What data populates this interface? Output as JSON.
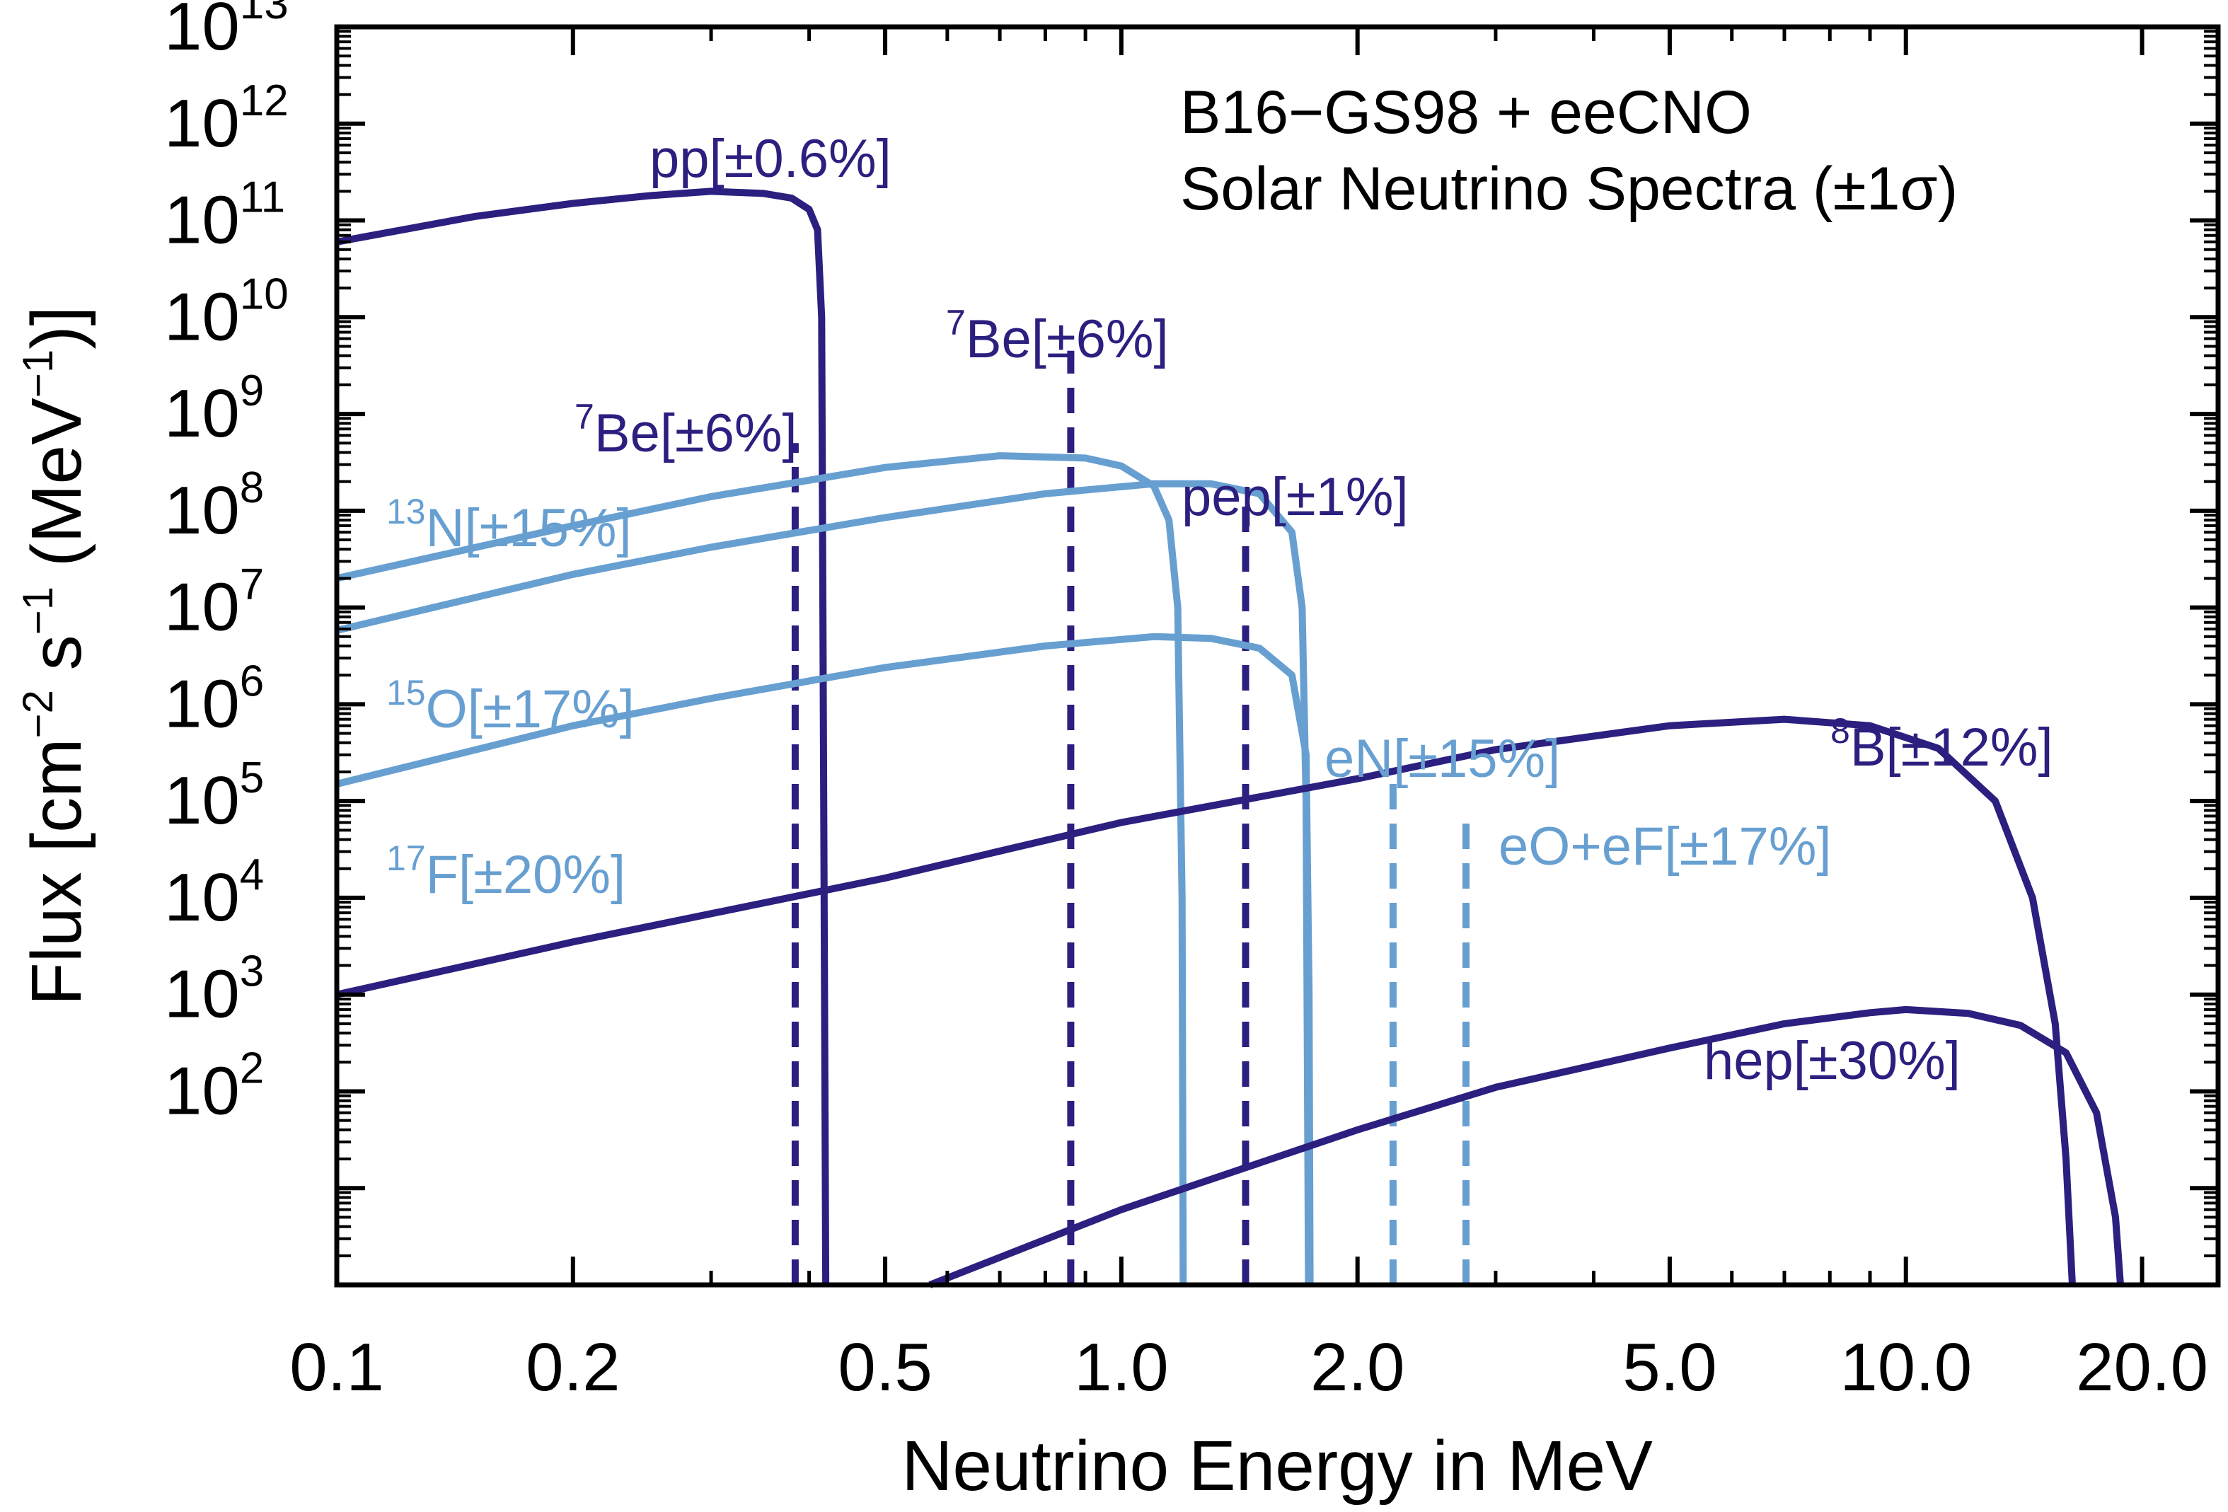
{
  "chart_data": {
    "type": "line",
    "title_lines": [
      "B16−GS98 + eeCNO",
      "Solar Neutrino Spectra (±1σ)"
    ],
    "xlabel": "Neutrino Energy in MeV",
    "ylabel": "Flux [cm−2 s−1 (MeV−1)]",
    "x_scale": "log",
    "y_scale": "log",
    "xlim": [
      0.1,
      25
    ],
    "ylim": [
      1,
      10000000000000
    ],
    "x_ticks": [
      0.1,
      0.2,
      0.5,
      1.0,
      2.0,
      5.0,
      10.0,
      20.0
    ],
    "x_tick_labels": [
      "0.1",
      "0.2",
      "0.5",
      "1.0",
      "2.0",
      "5.0",
      "10.0",
      "20.0"
    ],
    "y_ticks": [
      100,
      1000,
      10000,
      100000,
      1000000,
      10000000,
      100000000,
      1000000000,
      10000000000,
      100000000000,
      1000000000000,
      10000000000000
    ],
    "y_tick_base": "10",
    "y_tick_exponents": [
      "2",
      "3",
      "4",
      "5",
      "6",
      "7",
      "8",
      "9",
      "10",
      "11",
      "12",
      "13"
    ],
    "colors": {
      "pp_chain": "#2b1f7f",
      "cno": "#679fd1"
    },
    "series": [
      {
        "name": "pp",
        "label_main": "pp[±0.6%]",
        "color": "#2b1f7f",
        "style": "solid",
        "x": [
          0.1,
          0.15,
          0.2,
          0.25,
          0.3,
          0.35,
          0.38,
          0.4,
          0.41,
          0.415,
          0.418,
          0.42
        ],
        "y": [
          60000000000,
          110000000000,
          150000000000,
          180000000000,
          200000000000,
          190000000000,
          170000000000,
          130000000000,
          80000000000,
          10000000000,
          10000,
          1
        ]
      },
      {
        "name": "7Be-384keV",
        "label_sup": "7",
        "label_main": "Be[±6%]",
        "color": "#2b1f7f",
        "style": "dashed",
        "x": [
          0.384,
          0.384
        ],
        "y": [
          1,
          500000000
        ]
      },
      {
        "name": "7Be-862keV",
        "label_sup": "7",
        "label_main": "Be[±6%]",
        "color": "#2b1f7f",
        "style": "dashed",
        "x": [
          0.862,
          0.862
        ],
        "y": [
          1,
          4500000000
        ]
      },
      {
        "name": "pep",
        "label_main": "pep[±1%]",
        "color": "#2b1f7f",
        "style": "dashed",
        "x": [
          1.44,
          1.44
        ],
        "y": [
          1,
          150000000
        ]
      },
      {
        "name": "13N",
        "label_sup": "13",
        "label_main": "N[±15%]",
        "color": "#679fd1",
        "style": "solid",
        "x": [
          0.1,
          0.2,
          0.3,
          0.5,
          0.7,
          0.9,
          1.0,
          1.1,
          1.15,
          1.18,
          1.195,
          1.199
        ],
        "y": [
          20000000,
          70000000,
          140000000,
          280000000,
          370000000,
          350000000,
          290000000,
          180000000,
          80000000,
          10000000,
          10000,
          1
        ]
      },
      {
        "name": "15O",
        "label_sup": "15",
        "label_main": "O[±17%]",
        "color": "#679fd1",
        "style": "solid",
        "x": [
          0.1,
          0.2,
          0.3,
          0.5,
          0.8,
          1.1,
          1.3,
          1.5,
          1.65,
          1.7,
          1.72,
          1.732
        ],
        "y": [
          5800000,
          22000000,
          42000000,
          85000000,
          150000000,
          190000000,
          190000000,
          150000000,
          60000000,
          10000000,
          100000,
          1
        ]
      },
      {
        "name": "17F",
        "label_sup": "17",
        "label_main": "F[±20%]",
        "color": "#679fd1",
        "style": "solid",
        "x": [
          0.1,
          0.2,
          0.3,
          0.5,
          0.8,
          1.1,
          1.3,
          1.5,
          1.65,
          1.72,
          1.735,
          1.74
        ],
        "y": [
          150000,
          600000,
          1150000,
          2400000,
          4000000,
          5000000,
          4800000,
          3800000,
          2000000,
          300000,
          1000,
          1
        ]
      },
      {
        "name": "eN",
        "label_main": "eN[±15%]",
        "color": "#679fd1",
        "style": "dashed",
        "x": [
          2.22,
          2.22
        ],
        "y": [
          1,
          180000
        ]
      },
      {
        "name": "eO+eF",
        "label_main": "eO+eF[±17%]",
        "color": "#679fd1",
        "style": "dashed",
        "x": [
          2.75,
          2.75
        ],
        "y": [
          1,
          60000
        ]
      },
      {
        "name": "8B",
        "label_sup": "8",
        "label_main": "B[±12%]",
        "color": "#2b1f7f",
        "style": "solid",
        "x": [
          0.1,
          0.2,
          0.5,
          1.0,
          2.0,
          3.0,
          5.0,
          7.0,
          9.0,
          11.0,
          13.0,
          14.5,
          15.5,
          16.0,
          16.3
        ],
        "y": [
          1000,
          3500,
          16000,
          60000,
          170000,
          340000,
          600000,
          700000,
          600000,
          350000,
          100000,
          10000,
          500,
          20,
          1
        ]
      },
      {
        "name": "hep",
        "label_main": "hep[±30%]",
        "color": "#2b1f7f",
        "style": "solid",
        "x": [
          0.57,
          1.0,
          2.0,
          3.0,
          5.0,
          7.0,
          9.0,
          10.0,
          12.0,
          14.0,
          16.0,
          17.5,
          18.5,
          18.77
        ],
        "y": [
          1,
          6,
          40,
          110,
          280,
          500,
          650,
          700,
          640,
          480,
          250,
          60,
          5,
          1
        ]
      }
    ]
  }
}
